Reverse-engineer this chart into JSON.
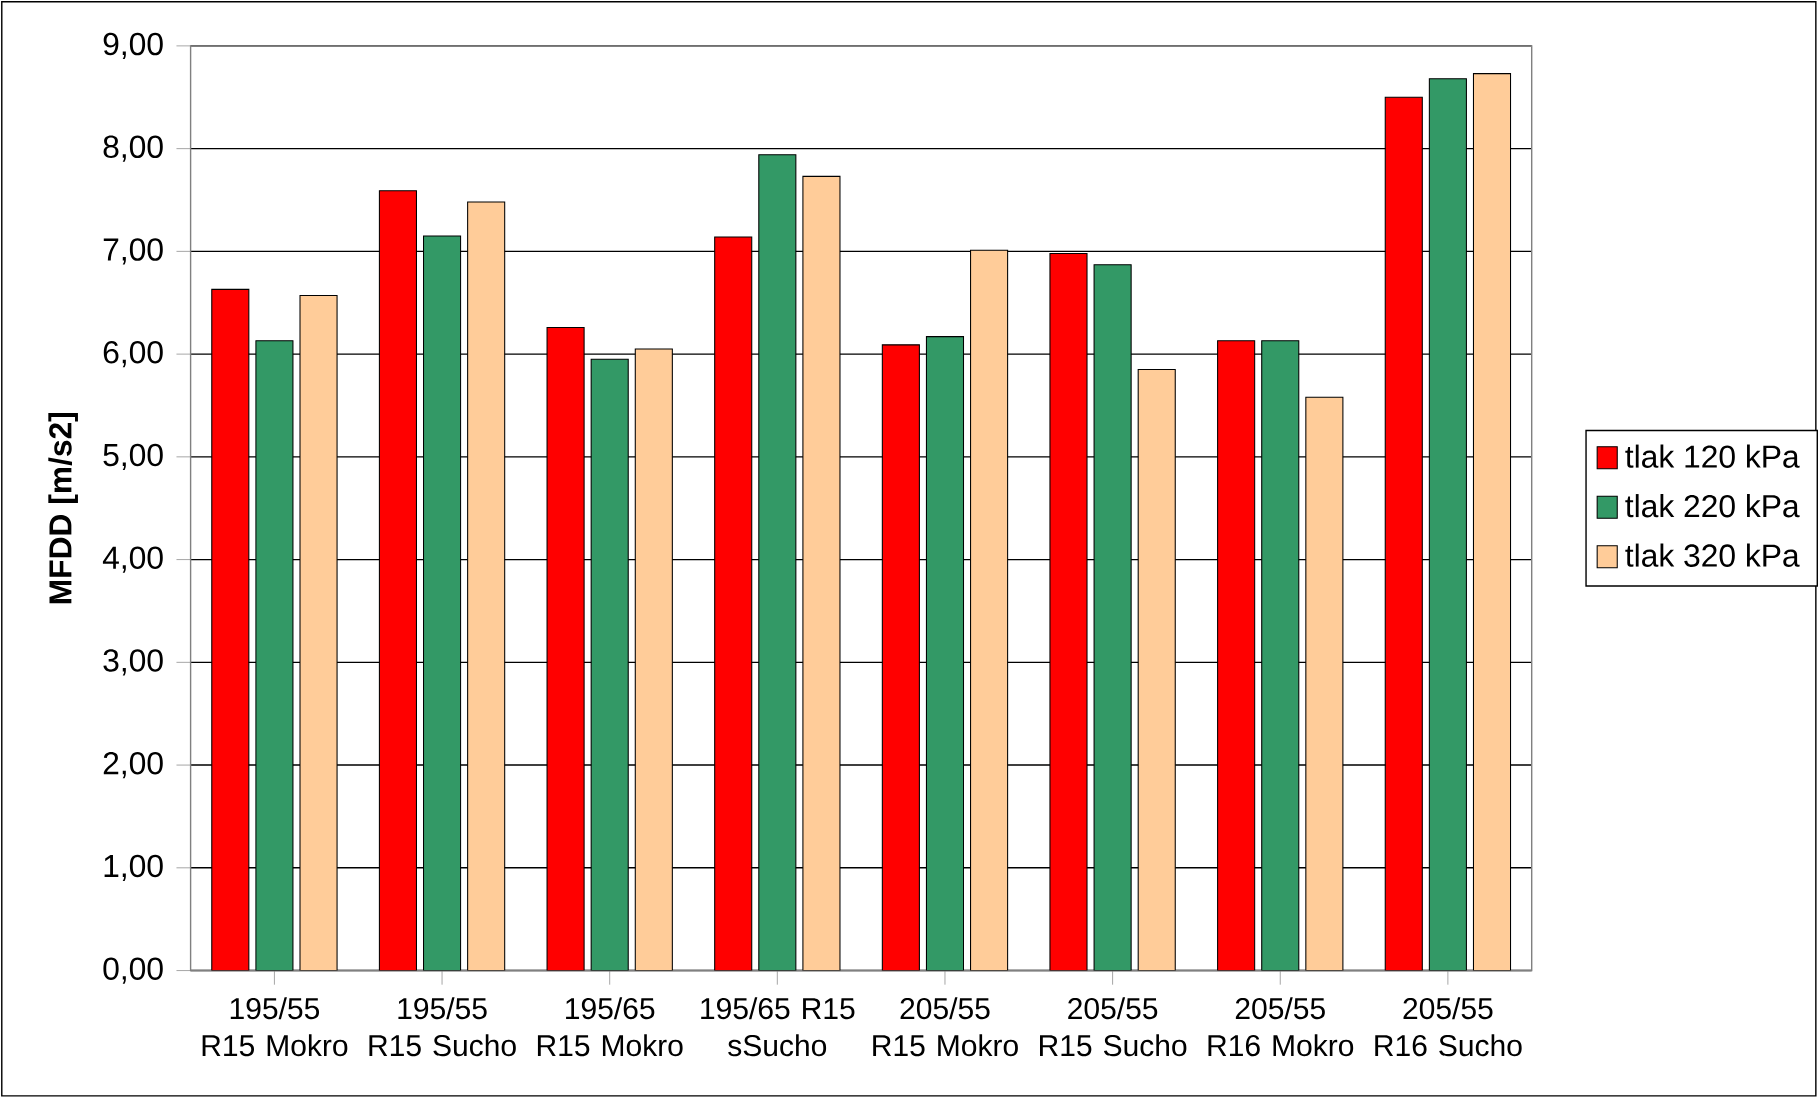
{
  "chart_data": {
    "type": "bar",
    "ylabel": "MFDD [m/s2]",
    "categories": [
      "195/55 R15 Mokro",
      "195/55 R15 Sucho",
      "195/65 R15 Mokro",
      "195/65 R15 sSucho",
      "205/55 R15 Mokro",
      "205/55 R15 Sucho",
      "205/55 R16 Mokro",
      "205/55 R16 Sucho"
    ],
    "series": [
      {
        "name": "tlak 120 kPa",
        "color": "#ff0000",
        "values": [
          6.63,
          7.59,
          6.26,
          7.14,
          6.09,
          6.98,
          6.13,
          8.5
        ]
      },
      {
        "name": "tlak 220 kPa",
        "color": "#339966",
        "values": [
          6.13,
          7.15,
          5.95,
          7.94,
          6.17,
          6.87,
          6.13,
          8.68
        ]
      },
      {
        "name": "tlak 320 kPa",
        "color": "#ffcc99",
        "values": [
          6.57,
          7.48,
          6.05,
          7.73,
          7.01,
          5.85,
          5.58,
          8.73
        ]
      }
    ],
    "ylim": [
      0,
      9
    ],
    "yticks": [
      {
        "value": 0,
        "label": "0,00"
      },
      {
        "value": 1,
        "label": "1,00"
      },
      {
        "value": 2,
        "label": "2,00"
      },
      {
        "value": 3,
        "label": "3,00"
      },
      {
        "value": 4,
        "label": "4,00"
      },
      {
        "value": 5,
        "label": "5,00"
      },
      {
        "value": 6,
        "label": "6,00"
      },
      {
        "value": 7,
        "label": "7,00"
      },
      {
        "value": 8,
        "label": "8,00"
      },
      {
        "value": 9,
        "label": "9,00"
      }
    ],
    "grid": "y",
    "legend": "right"
  }
}
